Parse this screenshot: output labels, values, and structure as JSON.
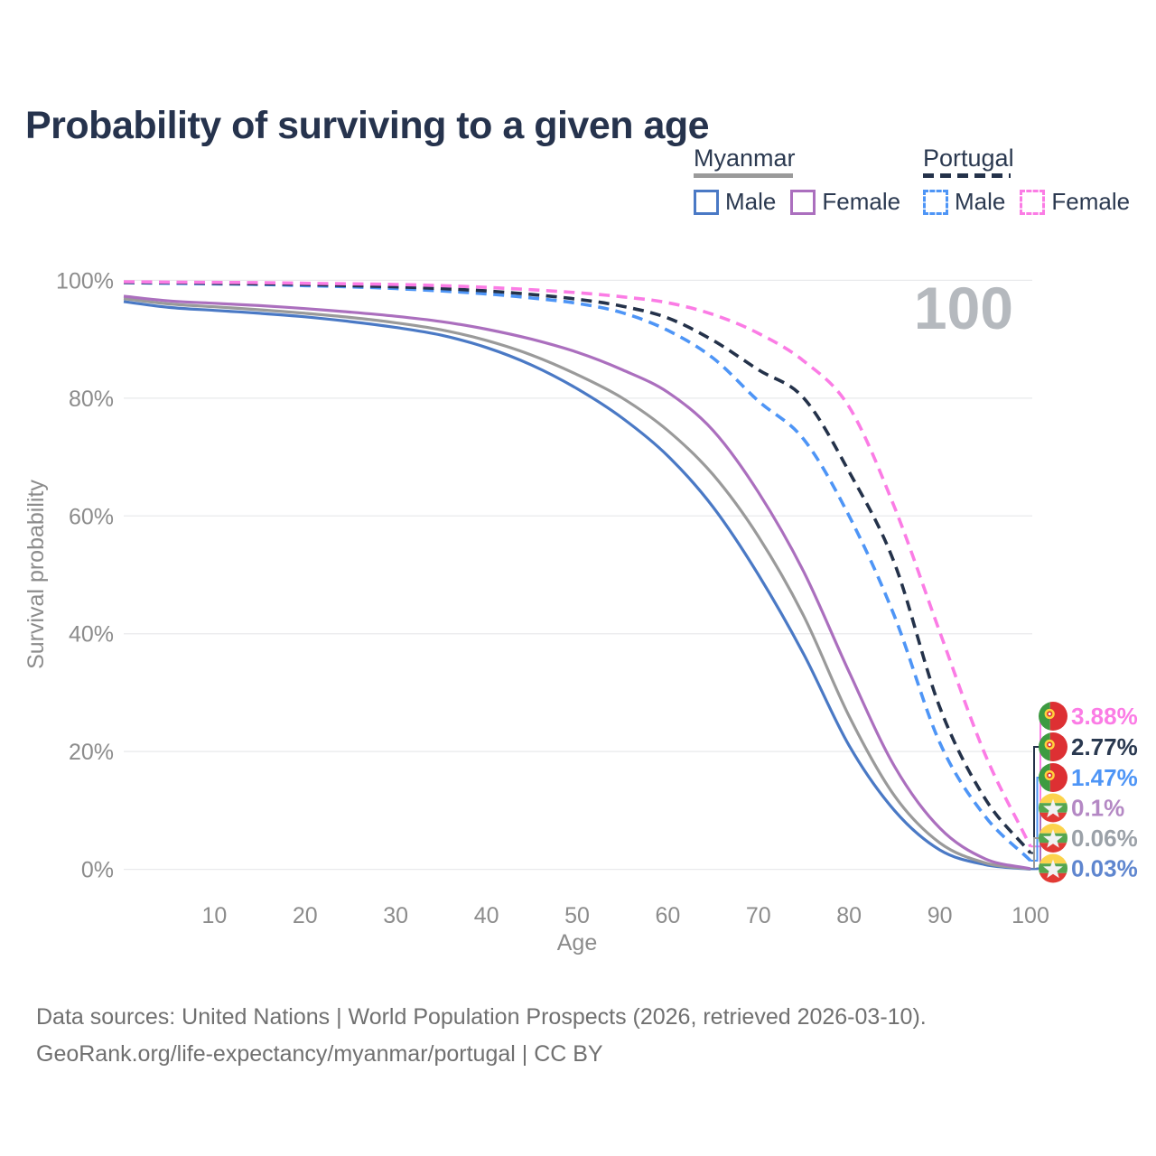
{
  "title": "Probability of surviving to a given age",
  "watermark_age": "100",
  "legend": {
    "groups": [
      {
        "label": "Myanmar",
        "line_style": "solid",
        "line_color": "#9a9a9a",
        "items": [
          {
            "label": "Male",
            "color": "#4a79c5",
            "dashed": false
          },
          {
            "label": "Female",
            "color": "#ab6fbe",
            "dashed": false
          }
        ]
      },
      {
        "label": "Portugal",
        "line_style": "dashed",
        "line_color": "#24324a",
        "items": [
          {
            "label": "Male",
            "color": "#4e95f6",
            "dashed": true
          },
          {
            "label": "Female",
            "color": "#fb7ce5",
            "dashed": true
          }
        ]
      }
    ]
  },
  "chart_data": {
    "type": "line",
    "title": "Probability of surviving to a given age",
    "xlabel": "Age",
    "ylabel": "Survival probability",
    "xlim": [
      0,
      100
    ],
    "ylim": [
      0,
      100
    ],
    "grid": "horizontal",
    "x_ticks": [
      "10",
      "20",
      "30",
      "40",
      "50",
      "60",
      "70",
      "80",
      "90",
      "100"
    ],
    "x_tick_values": [
      10,
      20,
      30,
      40,
      50,
      60,
      70,
      80,
      90,
      100
    ],
    "y_ticks": [
      "0%",
      "20%",
      "40%",
      "60%",
      "80%",
      "100%"
    ],
    "y_tick_values": [
      0,
      20,
      40,
      60,
      80,
      100
    ],
    "ages": [
      0,
      5,
      10,
      15,
      20,
      25,
      30,
      35,
      40,
      45,
      50,
      55,
      60,
      65,
      70,
      75,
      80,
      85,
      90,
      95,
      100
    ],
    "series": [
      {
        "name": "Myanmar Male",
        "country": "Myanmar",
        "sex": "Male",
        "line": "solid",
        "color": "#4a79c5",
        "values": [
          96.4,
          95.4,
          94.9,
          94.4,
          93.8,
          93.0,
          92.0,
          90.7,
          88.6,
          85.6,
          81.6,
          76.6,
          70.2,
          61.5,
          50.0,
          36.5,
          21.0,
          10.0,
          3.3,
          0.8,
          0.03
        ]
      },
      {
        "name": "Myanmar Both sexes",
        "country": "Myanmar",
        "sex": "Both",
        "line": "solid",
        "color": "#9a9a9a",
        "values": [
          96.9,
          96.0,
          95.5,
          95.0,
          94.4,
          93.7,
          92.8,
          91.6,
          89.8,
          87.3,
          84.0,
          80.0,
          74.5,
          67.0,
          56.5,
          43.0,
          26.0,
          12.5,
          4.5,
          1.1,
          0.06
        ]
      },
      {
        "name": "Myanmar Female",
        "country": "Myanmar",
        "sex": "Female",
        "line": "solid",
        "color": "#ab6fbe",
        "values": [
          97.3,
          96.5,
          96.1,
          95.7,
          95.2,
          94.6,
          93.9,
          93.0,
          91.7,
          90.0,
          87.8,
          84.8,
          81.0,
          74.5,
          64.0,
          50.5,
          33.5,
          17.5,
          7.0,
          1.8,
          0.1
        ]
      },
      {
        "name": "Portugal Male",
        "country": "Portugal",
        "sex": "Male",
        "line": "dashed",
        "color": "#4e95f6",
        "values": [
          99.6,
          99.5,
          99.4,
          99.3,
          99.1,
          98.9,
          98.6,
          98.2,
          97.7,
          97.0,
          96.1,
          94.5,
          91.5,
          86.8,
          79.5,
          73.0,
          60.0,
          43.0,
          21.5,
          9.0,
          1.47
        ]
      },
      {
        "name": "Portugal Both sexes",
        "country": "Portugal",
        "sex": "Both",
        "line": "dashed",
        "color": "#24324a",
        "values": [
          99.65,
          99.6,
          99.5,
          99.4,
          99.3,
          99.1,
          98.9,
          98.6,
          98.2,
          97.6,
          96.8,
          95.6,
          93.6,
          89.8,
          84.8,
          80.0,
          67.5,
          52.0,
          27.5,
          12.0,
          2.77
        ]
      },
      {
        "name": "Portugal Female",
        "country": "Portugal",
        "sex": "Female",
        "line": "dashed",
        "color": "#fb7ce5",
        "values": [
          99.75,
          99.7,
          99.65,
          99.6,
          99.5,
          99.4,
          99.3,
          99.1,
          98.8,
          98.4,
          97.9,
          97.2,
          96.2,
          94.2,
          91.0,
          86.3,
          78.5,
          61.5,
          40.3,
          19.5,
          3.88
        ]
      }
    ],
    "legend_position": "top-right",
    "end_labels": [
      {
        "series_index": 5,
        "value": "3.88%",
        "flag": "portugal",
        "text_color": "#fb7ce5"
      },
      {
        "series_index": 4,
        "value": "2.77%",
        "flag": "portugal",
        "text_color": "#2a3950"
      },
      {
        "series_index": 3,
        "value": "1.47%",
        "flag": "portugal",
        "text_color": "#4e95f6"
      },
      {
        "series_index": 2,
        "value": "0.1%",
        "flag": "myanmar",
        "text_color": "#b488c4"
      },
      {
        "series_index": 1,
        "value": "0.06%",
        "flag": "myanmar",
        "text_color": "#9ba1a8"
      },
      {
        "series_index": 0,
        "value": "0.03%",
        "flag": "myanmar",
        "text_color": "#5f86cf"
      }
    ]
  },
  "footer": {
    "line1": "Data sources: United Nations | World Population Prospects (2026, retrieved 2026-03-10).",
    "line2": "GeoRank.org/life-expectancy/myanmar/portugal | CC BY"
  }
}
